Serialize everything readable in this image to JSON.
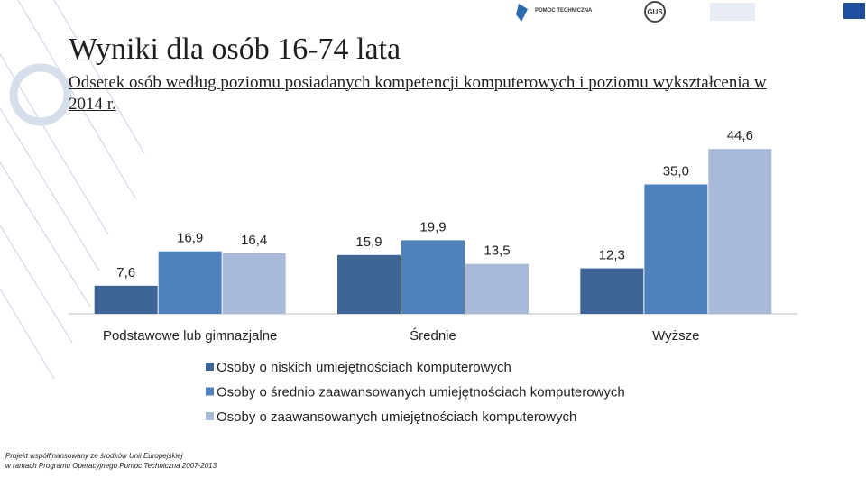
{
  "header": {
    "title": "Wyniki dla osób 16-74 lata",
    "subtitle": "Odsetek osób według poziomu posiadanych kompetencji komputerowych i poziomu wykształcenia w 2014 r."
  },
  "logos": {
    "left": "POMOC TECHNICZNA",
    "middle": "GUS"
  },
  "chart_data": {
    "type": "bar",
    "categories": [
      "Podstawowe lub gimnazjalne",
      "Średnie",
      "Wyższe"
    ],
    "series": [
      {
        "name": "Osoby o niskich umiejętnościach komputerowych",
        "color": "#3f6597",
        "values": [
          7.6,
          15.9,
          12.3
        ],
        "value_labels": [
          "7,6",
          "15,9",
          "12,3"
        ]
      },
      {
        "name": "Osoby o średnio zaawansowanych umiejętnościach komputerowych",
        "color": "#4f81bd",
        "values": [
          16.9,
          19.9,
          35.0
        ],
        "value_labels": [
          "16,9",
          "19,9",
          "35,0"
        ]
      },
      {
        "name": "Osoby o zaawansowanych umiejętnościach komputerowych",
        "color": "#a9bad8",
        "values": [
          16.4,
          13.5,
          44.6
        ],
        "value_labels": [
          "16,4",
          "13,5",
          "44,6"
        ]
      }
    ],
    "ylim": [
      0,
      50
    ]
  },
  "footer": {
    "lines": [
      "Projekt współfinansowany ze środków Unii Europejskiej",
      "w ramach Programu Operacyjnego Pomoc Techniczna 2007-2013"
    ]
  }
}
